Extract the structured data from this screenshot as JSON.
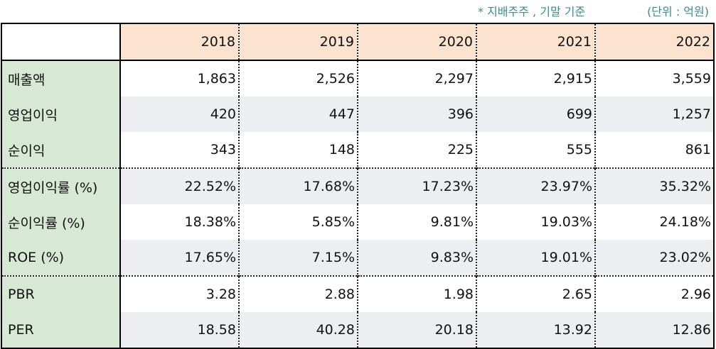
{
  "notes": {
    "basis": "* 지배주주 , 기말 기준",
    "unit": "(단위 : 억원)"
  },
  "table": {
    "years": [
      "2018",
      "2019",
      "2020",
      "2021",
      "2022"
    ],
    "rows": [
      {
        "label": "매출액",
        "values": [
          "1,863",
          "2,526",
          "2,297",
          "2,915",
          "3,559"
        ]
      },
      {
        "label": "영업이익",
        "values": [
          "420",
          "447",
          "396",
          "699",
          "1,257"
        ]
      },
      {
        "label": "순이익",
        "values": [
          "343",
          "148",
          "225",
          "555",
          "861"
        ]
      },
      {
        "label": "영업이익률 (%)",
        "values": [
          "22.52%",
          "17.68%",
          "17.23%",
          "23.97%",
          "35.32%"
        ]
      },
      {
        "label": "순이익률 (%)",
        "values": [
          "18.38%",
          "5.85%",
          "9.81%",
          "19.03%",
          "24.18%"
        ]
      },
      {
        "label": "ROE (%)",
        "values": [
          "17.65%",
          "7.15%",
          "9.83%",
          "19.01%",
          "23.02%"
        ]
      },
      {
        "label": "PBR",
        "values": [
          "3.28",
          "2.88",
          "1.98",
          "2.65",
          "2.96"
        ]
      },
      {
        "label": "PER",
        "values": [
          "18.58",
          "40.28",
          "20.18",
          "13.92",
          "12.86"
        ]
      }
    ]
  },
  "colors": {
    "header_bg": "#fbe3cf",
    "label_bg": "#d7e9d4",
    "stripe_bg": "#eceef1",
    "note_color": "#3c8c8c"
  }
}
